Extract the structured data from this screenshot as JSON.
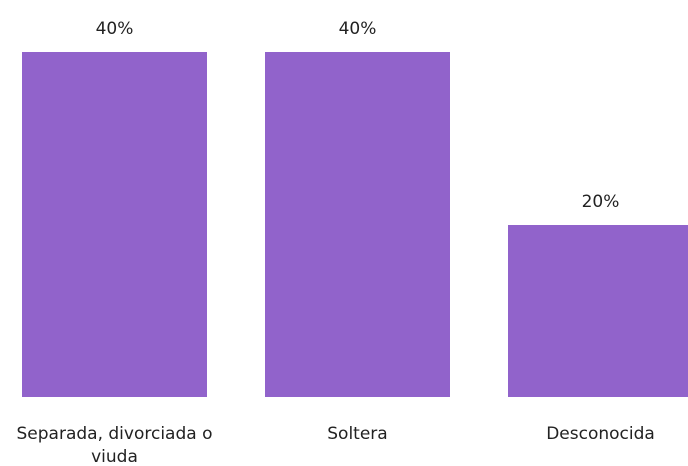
{
  "chart_data": {
    "type": "bar",
    "categories": [
      "Separada, divorciada o viuda",
      "Soltera",
      "Desconocida"
    ],
    "values": [
      40,
      40,
      20
    ],
    "value_labels": [
      "40%",
      "40%",
      "20%"
    ],
    "color": "#9163cb"
  }
}
